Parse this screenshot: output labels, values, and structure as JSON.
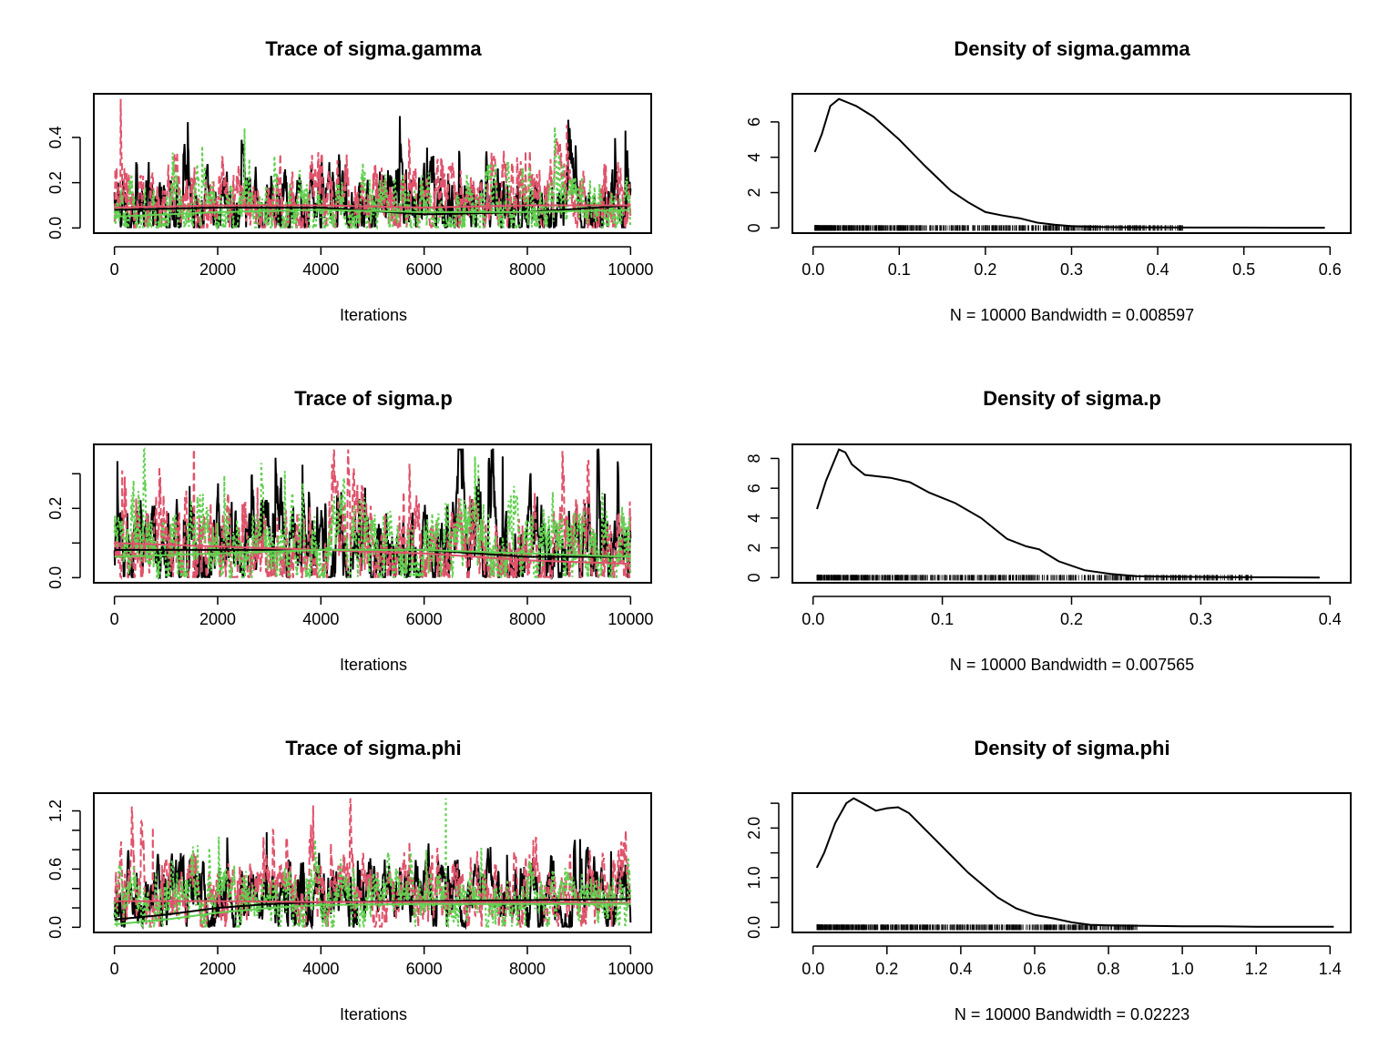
{
  "colors": {
    "chain1": "#000000",
    "chain2": "#DF536B",
    "chain3": "#61D04F",
    "axis": "#000000"
  },
  "chart_data": [
    {
      "type": "line",
      "kind": "trace",
      "title": "Trace of sigma.gamma",
      "xlabel": "Iterations",
      "xlim": [
        0,
        10000
      ],
      "ylim": [
        0,
        0.57
      ],
      "xticks": [
        0,
        2000,
        4000,
        6000,
        8000,
        10000
      ],
      "yticks": [
        0.0,
        0.2,
        0.4
      ],
      "ytick_labels": [
        "0.0",
        "0.2",
        "0.4"
      ],
      "series": [
        {
          "color": "chain1",
          "style": "solid",
          "base": 0.09,
          "amp": 0.28,
          "spike": 0.43,
          "spike_x": 9900,
          "seed": 11,
          "smooth": [
            [
              0,
              0.08
            ],
            [
              2000,
              0.09
            ],
            [
              4000,
              0.09
            ],
            [
              6000,
              0.06
            ],
            [
              8000,
              0.07
            ],
            [
              10000,
              0.1
            ]
          ]
        },
        {
          "color": "chain2",
          "style": "dashed",
          "base": 0.1,
          "amp": 0.3,
          "spike": 0.57,
          "spike_x": 120,
          "seed": 22,
          "smooth": [
            [
              0,
              0.09
            ],
            [
              2000,
              0.1
            ],
            [
              4000,
              0.1
            ],
            [
              6000,
              0.09
            ],
            [
              8000,
              0.1
            ],
            [
              10000,
              0.1
            ]
          ]
        },
        {
          "color": "chain3",
          "style": "dotted",
          "base": 0.07,
          "amp": 0.25,
          "spike": 0.44,
          "spike_x": 2520,
          "seed": 33,
          "smooth": [
            [
              0,
              0.05
            ],
            [
              2000,
              0.07
            ],
            [
              4000,
              0.08
            ],
            [
              6000,
              0.07
            ],
            [
              8000,
              0.07
            ],
            [
              10000,
              0.08
            ]
          ]
        }
      ]
    },
    {
      "type": "line",
      "kind": "density",
      "title": "Density of sigma.gamma",
      "xlabel": "N = 10000   Bandwidth = 0.008597",
      "xlim": [
        0,
        0.6
      ],
      "ylim": [
        0,
        7.3
      ],
      "xticks": [
        0.0,
        0.1,
        0.2,
        0.3,
        0.4,
        0.5,
        0.6
      ],
      "xtick_labels": [
        "0.0",
        "0.1",
        "0.2",
        "0.3",
        "0.4",
        "0.5",
        "0.6"
      ],
      "yticks": [
        0,
        2,
        4,
        6
      ],
      "ytick_labels": [
        "0",
        "2",
        "4",
        "6"
      ],
      "x": [
        0.002,
        0.01,
        0.02,
        0.03,
        0.04,
        0.05,
        0.07,
        0.1,
        0.13,
        0.16,
        0.18,
        0.2,
        0.22,
        0.24,
        0.26,
        0.28,
        0.3,
        0.33,
        0.36,
        0.4,
        0.45,
        0.5,
        0.55,
        0.594
      ],
      "y": [
        4.3,
        5.3,
        6.9,
        7.3,
        7.1,
        6.9,
        6.3,
        5.0,
        3.5,
        2.1,
        1.45,
        0.9,
        0.7,
        0.55,
        0.3,
        0.18,
        0.1,
        0.06,
        0.04,
        0.03,
        0.02,
        0.02,
        0.01,
        0.01
      ],
      "rug_range": [
        0.002,
        0.43
      ]
    },
    {
      "type": "line",
      "kind": "trace",
      "title": "Trace of sigma.p",
      "xlabel": "Iterations",
      "xlim": [
        0,
        10000
      ],
      "ylim": [
        0,
        0.37
      ],
      "xticks": [
        0,
        2000,
        4000,
        6000,
        8000,
        10000
      ],
      "yticks": [
        0.0,
        0.1,
        0.2,
        0.3
      ],
      "ytick_labels": [
        "0.0",
        "",
        "0.2",
        ""
      ],
      "series": [
        {
          "color": "chain1",
          "style": "solid",
          "base": 0.08,
          "amp": 0.24,
          "spike": 0.35,
          "spike_x": 7520,
          "seed": 44,
          "smooth": [
            [
              0,
              0.08
            ],
            [
              2000,
              0.08
            ],
            [
              4000,
              0.08
            ],
            [
              6000,
              0.08
            ],
            [
              8000,
              0.06
            ],
            [
              10000,
              0.06
            ]
          ]
        },
        {
          "color": "chain2",
          "style": "dashed",
          "base": 0.07,
          "amp": 0.24,
          "spike": 0.37,
          "spike_x": 1540,
          "seed": 55,
          "smooth": [
            [
              0,
              0.1
            ],
            [
              2000,
              0.09
            ],
            [
              4000,
              0.08
            ],
            [
              6000,
              0.07
            ],
            [
              8000,
              0.05
            ],
            [
              10000,
              0.04
            ]
          ]
        },
        {
          "color": "chain3",
          "style": "dotted",
          "base": 0.08,
          "amp": 0.22,
          "spike": 0.33,
          "spike_x": 7050,
          "seed": 66,
          "smooth": [
            [
              0,
              0.06
            ],
            [
              2000,
              0.07
            ],
            [
              4000,
              0.08
            ],
            [
              6000,
              0.08
            ],
            [
              8000,
              0.07
            ],
            [
              10000,
              0.06
            ]
          ]
        }
      ]
    },
    {
      "type": "line",
      "kind": "density",
      "title": "Density of sigma.p",
      "xlabel": "N = 10000   Bandwidth = 0.007565",
      "xlim": [
        0,
        0.4
      ],
      "ylim": [
        0,
        8.6
      ],
      "xticks": [
        0.0,
        0.1,
        0.2,
        0.3,
        0.4
      ],
      "xtick_labels": [
        "0.0",
        "0.1",
        "0.2",
        "0.3",
        "0.4"
      ],
      "yticks": [
        0,
        2,
        4,
        6,
        8
      ],
      "ytick_labels": [
        "0",
        "2",
        "4",
        "6",
        "8"
      ],
      "x": [
        0.003,
        0.01,
        0.02,
        0.025,
        0.03,
        0.04,
        0.05,
        0.06,
        0.075,
        0.09,
        0.11,
        0.13,
        0.15,
        0.165,
        0.175,
        0.19,
        0.21,
        0.23,
        0.25,
        0.28,
        0.31,
        0.35,
        0.392
      ],
      "y": [
        4.6,
        6.5,
        8.6,
        8.4,
        7.6,
        6.9,
        6.8,
        6.7,
        6.4,
        5.7,
        5.0,
        4.0,
        2.6,
        2.1,
        1.9,
        1.1,
        0.5,
        0.25,
        0.1,
        0.06,
        0.04,
        0.02,
        0.01
      ],
      "rug_range": [
        0.003,
        0.34
      ]
    },
    {
      "type": "line",
      "kind": "trace",
      "title": "Trace of sigma.phi",
      "xlabel": "Iterations",
      "xlim": [
        0,
        10000
      ],
      "ylim": [
        0,
        1.33
      ],
      "xticks": [
        0,
        2000,
        4000,
        6000,
        8000,
        10000
      ],
      "yticks": [
        0.0,
        0.2,
        0.4,
        0.6,
        0.8,
        1.0,
        1.2
      ],
      "ytick_labels": [
        "0.0",
        "",
        "",
        "0.6",
        "",
        "",
        "1.2"
      ],
      "series": [
        {
          "color": "chain1",
          "style": "solid",
          "base": 0.3,
          "amp": 0.6,
          "spike": 0.98,
          "spike_x": 2950,
          "seed": 77,
          "smooth": [
            [
              0,
              0.08
            ],
            [
              1000,
              0.13
            ],
            [
              2000,
              0.2
            ],
            [
              3000,
              0.24
            ],
            [
              4000,
              0.26
            ],
            [
              6000,
              0.27
            ],
            [
              8000,
              0.28
            ],
            [
              10000,
              0.29
            ]
          ]
        },
        {
          "color": "chain2",
          "style": "dashed",
          "base": 0.32,
          "amp": 0.6,
          "spike": 1.03,
          "spike_x": 740,
          "seed": 88,
          "smooth": [
            [
              0,
              0.27
            ],
            [
              2000,
              0.27
            ],
            [
              4000,
              0.26
            ],
            [
              6000,
              0.26
            ],
            [
              8000,
              0.26
            ],
            [
              10000,
              0.25
            ]
          ]
        },
        {
          "color": "chain3",
          "style": "dotted",
          "base": 0.28,
          "amp": 0.55,
          "spike": 1.33,
          "spike_x": 6420,
          "seed": 99,
          "smooth": [
            [
              0,
              0.03
            ],
            [
              1000,
              0.08
            ],
            [
              2000,
              0.15
            ],
            [
              3000,
              0.2
            ],
            [
              4000,
              0.23
            ],
            [
              6000,
              0.24
            ],
            [
              8000,
              0.24
            ],
            [
              10000,
              0.24
            ]
          ]
        }
      ]
    },
    {
      "type": "line",
      "kind": "density",
      "title": "Density of sigma.phi",
      "xlabel": "N = 10000   Bandwidth = 0.02223",
      "xlim": [
        0,
        1.4
      ],
      "ylim": [
        0,
        2.6
      ],
      "xticks": [
        0.0,
        0.2,
        0.4,
        0.6,
        0.8,
        1.0,
        1.2,
        1.4
      ],
      "xtick_labels": [
        "0.0",
        "0.2",
        "0.4",
        "0.6",
        "0.8",
        "1.0",
        "1.2",
        "1.4"
      ],
      "yticks": [
        0.0,
        0.5,
        1.0,
        1.5,
        2.0,
        2.5
      ],
      "ytick_labels": [
        "0.0",
        "",
        "1.0",
        "",
        "2.0",
        ""
      ],
      "x": [
        0.01,
        0.03,
        0.06,
        0.09,
        0.11,
        0.14,
        0.17,
        0.2,
        0.23,
        0.26,
        0.3,
        0.34,
        0.38,
        0.42,
        0.46,
        0.5,
        0.55,
        0.6,
        0.65,
        0.7,
        0.75,
        0.8,
        0.9,
        1.0,
        1.1,
        1.2,
        1.3,
        1.41
      ],
      "y": [
        1.2,
        1.5,
        2.1,
        2.5,
        2.6,
        2.48,
        2.35,
        2.4,
        2.42,
        2.3,
        2.0,
        1.7,
        1.4,
        1.1,
        0.85,
        0.6,
        0.38,
        0.25,
        0.18,
        0.1,
        0.05,
        0.04,
        0.03,
        0.02,
        0.02,
        0.01,
        0.01,
        0.01
      ],
      "rug_range": [
        0.01,
        0.88
      ]
    }
  ]
}
